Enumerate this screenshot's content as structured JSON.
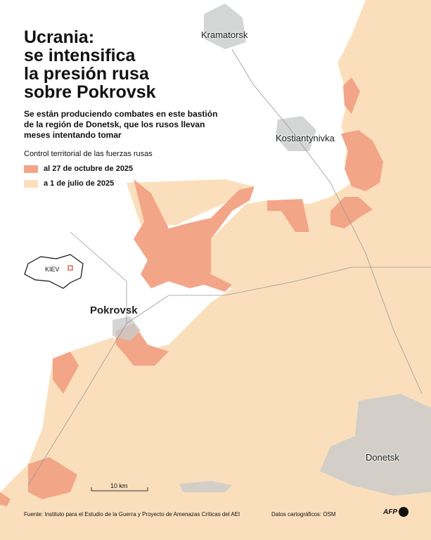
{
  "header": {
    "title_lines": [
      "Ucrania:",
      "se intensifica",
      "la presión rusa",
      "sobre Pokrovsk"
    ],
    "subtitle_lines": [
      "Se están produciendo combates en este bastión",
      "de la región de Donetsk, que los rusos llevan",
      "meses intentando tomar"
    ]
  },
  "legend": {
    "title": "Control territorial de las fuerzas rusas",
    "items": [
      "al 27 de octubre de 2025",
      "a 1 de julio de 2025"
    ]
  },
  "map": {
    "cities": [
      "Kramatorsk",
      "Kostiantynivka",
      "Pokrovsk",
      "Donetsk"
    ],
    "inset_label": "KIEV",
    "scale": "10 km"
  },
  "footer": {
    "source": "Fuente: Instituto para el Estudio de la Guerra y Proyecto de Amenazas Críticas del AEI",
    "osm": "Datos cartográficos: OSM",
    "logo": "AFP"
  }
}
